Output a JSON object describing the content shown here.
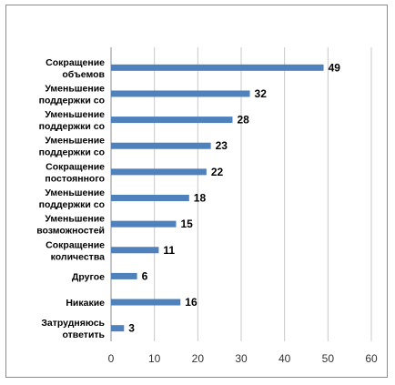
{
  "chart_data": {
    "type": "bar",
    "orientation": "horizontal",
    "title": "",
    "xlabel": "",
    "ylabel": "",
    "xlim": [
      0,
      60
    ],
    "x_ticks": [
      0,
      10,
      20,
      30,
      40,
      50,
      60
    ],
    "grid": "vertical",
    "legend": "none",
    "bar_color": "#4f81bd",
    "categories": [
      {
        "label_lines": [
          "Сокращение",
          "объемов"
        ],
        "value": 49
      },
      {
        "label_lines": [
          "Уменьшение",
          "поддержки со"
        ],
        "value": 32
      },
      {
        "label_lines": [
          "Уменьшение",
          "поддержки со"
        ],
        "value": 28
      },
      {
        "label_lines": [
          "Уменьшение",
          "поддержки со"
        ],
        "value": 23
      },
      {
        "label_lines": [
          "Сокращение",
          "постоянного"
        ],
        "value": 22
      },
      {
        "label_lines": [
          "Уменьшение",
          "поддержки со"
        ],
        "value": 18
      },
      {
        "label_lines": [
          "Уменьшение",
          "возможностей"
        ],
        "value": 15
      },
      {
        "label_lines": [
          "Сокращение",
          "количества"
        ],
        "value": 11
      },
      {
        "label_lines": [
          "Другое"
        ],
        "value": 6
      },
      {
        "label_lines": [
          "Никакие"
        ],
        "value": 16
      },
      {
        "label_lines": [
          "Затрудняюсь",
          "ответить"
        ],
        "value": 3
      }
    ]
  }
}
